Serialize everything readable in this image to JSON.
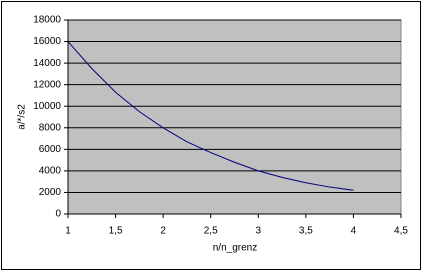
{
  "chart_data": {
    "type": "line",
    "xlabel": "n/n_grenz",
    "ylabel": "a/*/s2",
    "x": [
      1,
      1.25,
      1.5,
      1.75,
      2,
      2.25,
      2.5,
      2.75,
      3,
      3.25,
      3.5,
      3.75,
      4
    ],
    "values": [
      16000,
      13500,
      11300,
      9500,
      8000,
      6700,
      5700,
      4800,
      4000,
      3400,
      2900,
      2500,
      2200
    ],
    "color": "#000080",
    "xlim": [
      1,
      4.5
    ],
    "xticks": [
      1,
      {
        "value": 1.5,
        "label": "1,5"
      },
      2,
      {
        "value": 2.5,
        "label": "2,5"
      },
      3,
      {
        "value": 3.5,
        "label": "3,5"
      },
      4,
      {
        "value": 4.5,
        "label": "4,5"
      }
    ],
    "ylim": [
      0,
      18000
    ],
    "yticks": [
      0,
      2000,
      4000,
      6000,
      8000,
      10000,
      12000,
      14000,
      16000,
      18000
    ],
    "grid": true,
    "plot_background": "#c0c0c0"
  }
}
